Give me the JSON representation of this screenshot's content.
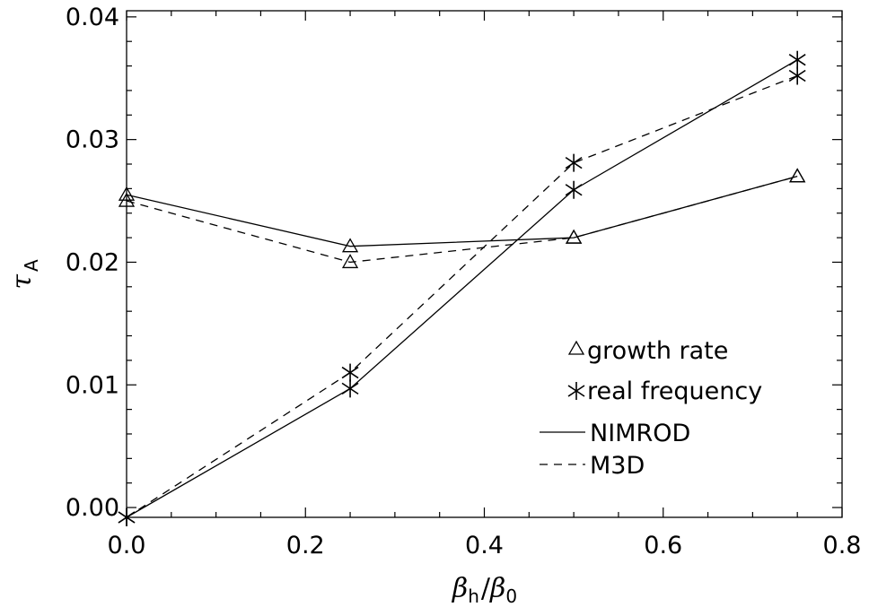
{
  "chart_data": {
    "type": "line",
    "xlabel": {
      "main": "β",
      "sub1": "h",
      "slash": "/",
      "main2": "β",
      "sub2": "0"
    },
    "ylabel": {
      "main": "τ",
      "sub": "A"
    },
    "xlim": [
      0.0,
      0.8
    ],
    "ylim": [
      -0.0008,
      0.0405
    ],
    "xticks": [
      "0.0",
      "0.2",
      "0.4",
      "0.6",
      "0.8"
    ],
    "xtick_values": [
      0.0,
      0.2,
      0.4,
      0.6,
      0.8
    ],
    "yticks": [
      "0.00",
      "0.01",
      "0.02",
      "0.03",
      "0.04"
    ],
    "ytick_values": [
      0.0,
      0.01,
      0.02,
      0.03,
      0.04
    ],
    "x": [
      0.0,
      0.25,
      0.5,
      0.75
    ],
    "series": [
      {
        "name": "NIMROD growth rate",
        "code": "NIMROD",
        "quantity": "growth rate",
        "linestyle": "solid",
        "marker": "triangle",
        "values": [
          0.0255,
          0.0213,
          0.022,
          0.027
        ]
      },
      {
        "name": "M3D growth rate",
        "code": "M3D",
        "quantity": "growth rate",
        "linestyle": "dashed",
        "marker": "triangle",
        "values": [
          0.025,
          0.02,
          0.022,
          0.027
        ]
      },
      {
        "name": "NIMROD real frequency",
        "code": "NIMROD",
        "quantity": "real frequency",
        "linestyle": "solid",
        "marker": "asterisk",
        "values": [
          -0.0008,
          0.0097,
          0.0259,
          0.0365
        ]
      },
      {
        "name": "M3D real frequency",
        "code": "M3D",
        "quantity": "real frequency",
        "linestyle": "dashed",
        "marker": "asterisk",
        "values": [
          -0.0008,
          0.011,
          0.0281,
          0.0352
        ]
      }
    ],
    "legend": {
      "position": "bottom-right",
      "marker_entries": [
        {
          "marker": "triangle",
          "label": "growth rate"
        },
        {
          "marker": "asterisk",
          "label": "real frequency"
        }
      ],
      "line_entries": [
        {
          "linestyle": "solid",
          "label": "NIMROD"
        },
        {
          "linestyle": "dashed",
          "label": "M3D"
        }
      ]
    },
    "grid": false,
    "colors": {
      "line": "#000000",
      "background": "#ffffff"
    }
  }
}
